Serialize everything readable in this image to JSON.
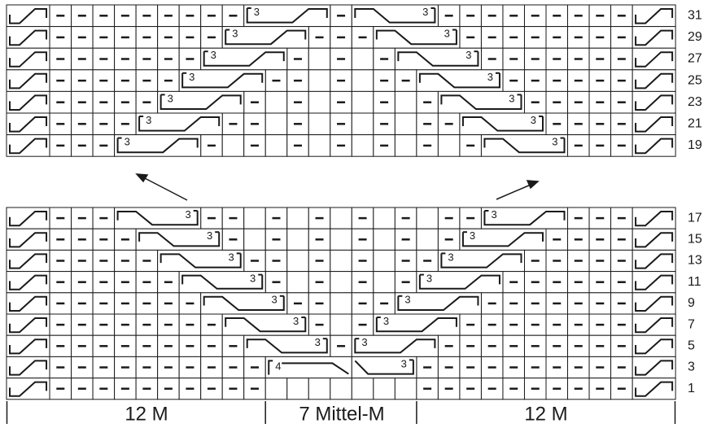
{
  "top_block": {
    "rows": [
      {
        "number": "31",
        "cables": [
          "3",
          "3"
        ]
      },
      {
        "number": "29",
        "cables": [
          "3",
          "3"
        ]
      },
      {
        "number": "27",
        "cables": [
          "3",
          "3"
        ]
      },
      {
        "number": "25",
        "cables": [
          "3",
          "3"
        ]
      },
      {
        "number": "23",
        "cables": [
          "3",
          "3"
        ]
      },
      {
        "number": "21",
        "cables": [
          "3",
          "3"
        ]
      },
      {
        "number": "19",
        "cables": [
          "3",
          "3"
        ]
      }
    ]
  },
  "bottom_block": {
    "rows": [
      {
        "number": "17",
        "cables": [
          "3",
          "3"
        ]
      },
      {
        "number": "15",
        "cables": [
          "3",
          "3"
        ]
      },
      {
        "number": "13",
        "cables": [
          "3",
          "3"
        ]
      },
      {
        "number": "11",
        "cables": [
          "3",
          "3"
        ]
      },
      {
        "number": "9",
        "cables": [
          "3",
          "3"
        ]
      },
      {
        "number": "7",
        "cables": [
          "3",
          "3"
        ]
      },
      {
        "number": "5",
        "cables": [
          "3",
          "3"
        ]
      },
      {
        "number": "3",
        "cables": [
          "4",
          "3"
        ]
      },
      {
        "number": "1",
        "cables": []
      }
    ]
  },
  "footer": {
    "sections": [
      "12 M",
      "7 Mittel-M",
      "12 M"
    ]
  }
}
